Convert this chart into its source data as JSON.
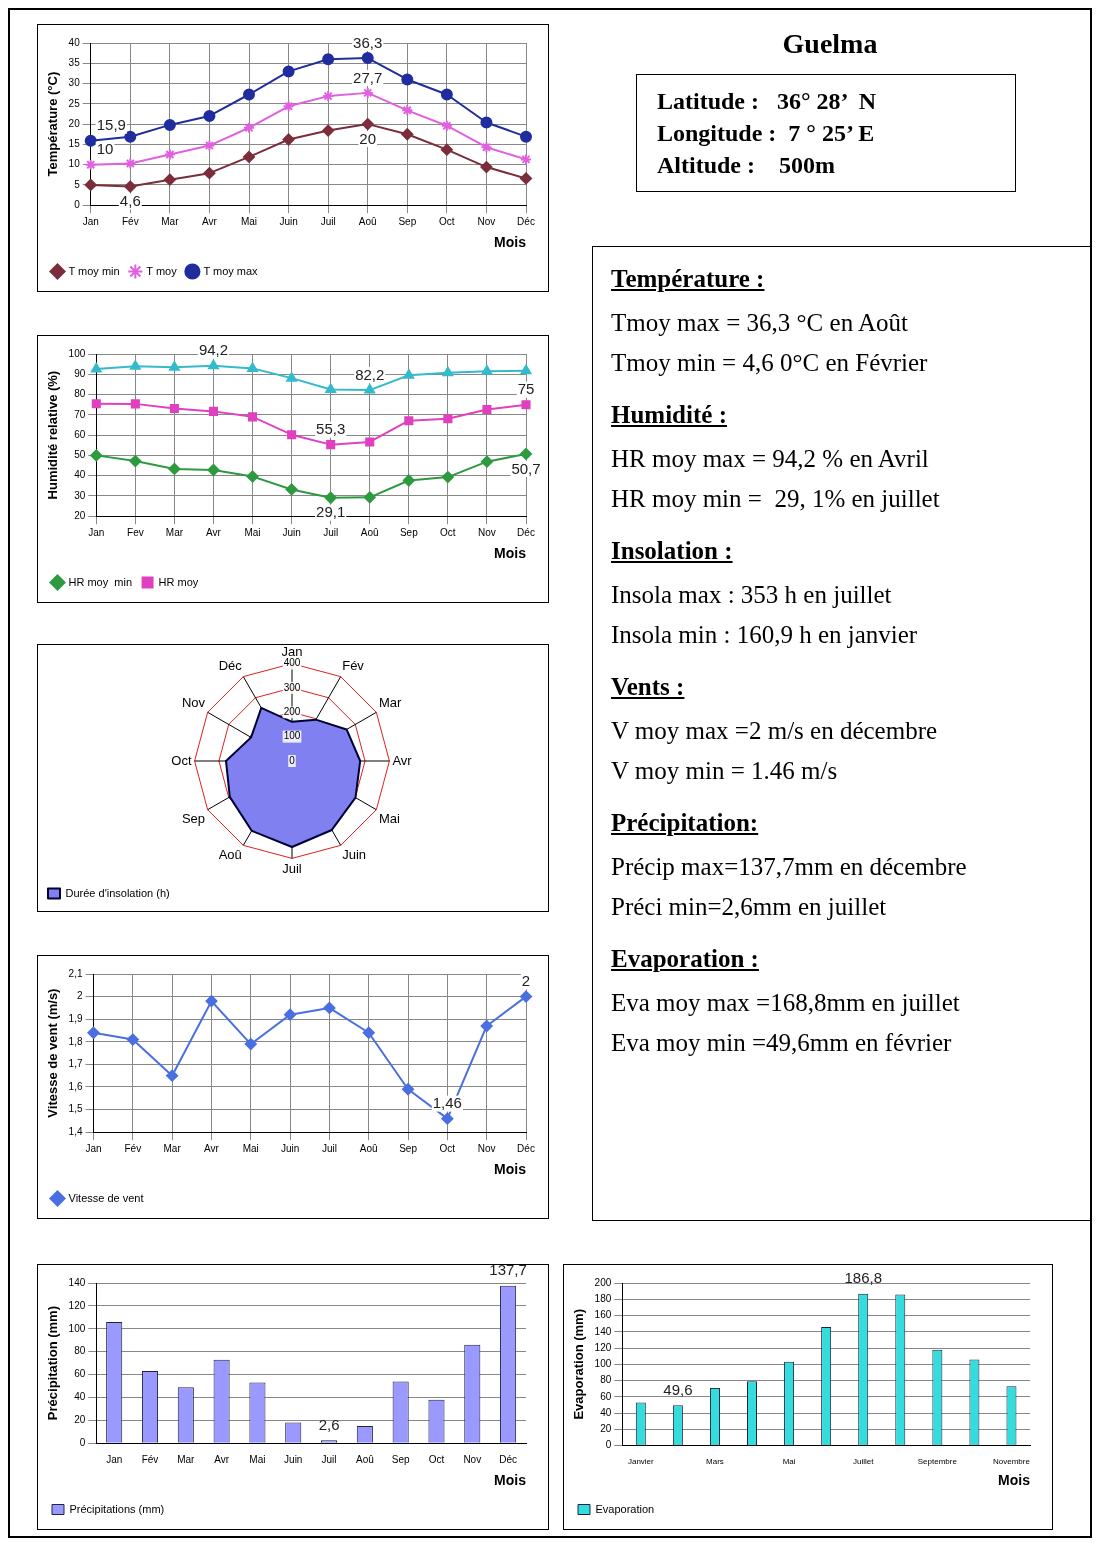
{
  "chart_data": [
    {
      "type": "line",
      "xlabel": "Mois",
      "ylabel": "Température (°C)",
      "categories": [
        "Jan",
        "Fév",
        "Mar",
        "Avr",
        "Mai",
        "Juin",
        "Juil",
        "Aoû",
        "Sep",
        "Oct",
        "Nov",
        "Déc"
      ],
      "ylim": [
        0,
        40
      ],
      "yticks": [
        0,
        5,
        10,
        15,
        20,
        25,
        30,
        35,
        40
      ],
      "grid": true,
      "legend": "bottom left",
      "series": [
        {
          "name": "T moy min",
          "color": "#7b2d3b",
          "marker": "diamond",
          "values": [
            5,
            4.6,
            6.3,
            7.9,
            11.9,
            16.2,
            18.4,
            20,
            17.5,
            13.7,
            9.4,
            6.6
          ],
          "value_labels": [
            null,
            "4,6",
            null,
            null,
            null,
            null,
            null,
            "20",
            null,
            null,
            null,
            null
          ]
        },
        {
          "name": "T moy",
          "color": "#e060e0",
          "marker": "cross",
          "values": [
            10,
            10.3,
            12.5,
            14.7,
            19.1,
            24.4,
            26.9,
            27.7,
            23.4,
            19.6,
            14.3,
            11.3
          ],
          "value_labels": [
            "10",
            null,
            null,
            null,
            null,
            null,
            null,
            "27,7",
            null,
            null,
            null,
            null
          ]
        },
        {
          "name": "T moy max",
          "color": "#1f2d9f",
          "marker": "circle",
          "values": [
            15.9,
            16.9,
            19.8,
            22,
            27.3,
            33,
            36,
            36.3,
            31,
            27.3,
            20.4,
            16.9
          ],
          "value_labels": [
            "15,9",
            null,
            null,
            null,
            null,
            null,
            null,
            "36,3",
            null,
            null,
            null,
            null
          ]
        }
      ]
    },
    {
      "type": "other",
      "title": "Guelma",
      "annotations": [
        "Latitude :   36° 28’  N",
        "Longitude :  7 ° 25’ E",
        "Altitude :    500m"
      ]
    },
    {
      "type": "line",
      "xlabel": "Mois",
      "ylabel": "Humidité relative (%)",
      "categories": [
        "Jan",
        "Fev",
        "Mar",
        "Avr",
        "Mai",
        "Juin",
        "Juil",
        "Aoû",
        "Sep",
        "Oct",
        "Nov",
        "Déc"
      ],
      "ylim": [
        20,
        100
      ],
      "yticks": [
        20,
        30,
        40,
        50,
        60,
        70,
        80,
        90,
        100
      ],
      "grid": true,
      "legend": "bottom left",
      "series": [
        {
          "name": "HR moy  min",
          "color": "#2e9a40",
          "marker": "diamond",
          "values": [
            50,
            47.2,
            43.3,
            42.8,
            39.6,
            33.2,
            29.1,
            29.3,
            37.6,
            39.3,
            46.9,
            50.7
          ],
          "value_labels": [
            null,
            null,
            null,
            null,
            null,
            null,
            "29,1",
            null,
            null,
            null,
            null,
            "50,7"
          ]
        },
        {
          "name": "HR moy",
          "color": "#e040c0",
          "marker": "square",
          "values": [
            75.5,
            75.4,
            73.1,
            71.7,
            69,
            60.2,
            55.3,
            56.6,
            67.1,
            68.1,
            72.6,
            75
          ],
          "value_labels": [
            null,
            null,
            null,
            null,
            null,
            null,
            "55,3",
            null,
            null,
            null,
            null,
            "75"
          ]
        },
        {
          "color": "#33bbcc",
          "marker": "triangle",
          "values": [
            92.6,
            93.9,
            93.5,
            94.2,
            92.9,
            88.1,
            82.5,
            82.2,
            89.5,
            90.8,
            91.5,
            91.7
          ],
          "value_labels": [
            null,
            null,
            null,
            "94,2",
            null,
            null,
            null,
            "82,2",
            null,
            null,
            null,
            null
          ]
        }
      ]
    },
    {
      "type": "other",
      "title": "Température :",
      "annotations": [
        "Tmoy max = 36,3 °C en Août",
        "Tmoy min = 4,6 0°C en Février"
      ]
    },
    {
      "type": "other",
      "title": "Humidité :",
      "annotations": [
        "HR moy max = 94,2 % en Avril",
        "HR moy min =  29, 1% en juillet"
      ]
    },
    {
      "type": "other",
      "title": "Insolation :",
      "annotations": [
        "Insola max : 353 h en juillet",
        "Insola min : 160,9 h en janvier"
      ]
    },
    {
      "type": "other",
      "title": "Vents :",
      "annotations": [
        "V moy max =2 m/s en décembre",
        "V moy min = 1.46 m/s"
      ]
    },
    {
      "type": "other",
      "title": "Précipitation:",
      "annotations": [
        "Précip max=137,7mm en décembre",
        "Préci min=2,6mm en juillet"
      ]
    },
    {
      "type": "other",
      "title": "Evaporation :",
      "annotations": [
        "Eva moy max =168,8mm en juillet",
        "Eva moy min =49,6mm en février"
      ]
    },
    {
      "type": "radar",
      "categories": [
        "Jan",
        "Fév",
        "Mar",
        "Avr",
        "Mai",
        "Juin",
        "Juil",
        "Aoû",
        "Sep",
        "Oct",
        "Nov",
        "Déc"
      ],
      "ylim": [
        0,
        400
      ],
      "yticks": [
        0,
        100,
        200,
        300,
        400
      ],
      "grid": true,
      "legend": "bottom left",
      "series": [
        {
          "name": "Durée d'insolation (h)",
          "color": "#8080f0",
          "values": [
            160.9,
            196,
            259,
            280,
            301,
            327,
            353,
            331,
            295,
            271,
            194,
            252
          ]
        }
      ]
    },
    {
      "type": "line",
      "xlabel": "Mois",
      "ylabel": "Vitesse de vent (m/s)",
      "categories": [
        "Jan",
        "Fév",
        "Mar",
        "Avr",
        "Mai",
        "Juin",
        "Juil",
        "Aoû",
        "Sep",
        "Oct",
        "Nov",
        "Déc"
      ],
      "ylim": [
        1.4,
        2.1
      ],
      "yticks": [
        {
          "value": 1.4,
          "label": "1,4"
        },
        {
          "value": 1.5,
          "label": "1,5"
        },
        {
          "value": 1.6,
          "label": "1,6"
        },
        {
          "value": 1.7,
          "label": "1,7"
        },
        {
          "value": 1.8,
          "label": "1,8"
        },
        {
          "value": 1.9,
          "label": "1,9"
        },
        2,
        {
          "value": 2.1,
          "label": "2,1"
        }
      ],
      "grid": true,
      "legend": "bottom left",
      "series": [
        {
          "name": "Vitesse de vent",
          "color": "#4a6fe0",
          "marker": "diamond",
          "values": [
            1.84,
            1.81,
            1.65,
            1.98,
            1.79,
            1.92,
            1.95,
            1.84,
            1.59,
            1.46,
            1.87,
            2
          ],
          "value_labels": [
            null,
            null,
            null,
            null,
            null,
            null,
            null,
            null,
            null,
            "1,46",
            null,
            "2"
          ]
        }
      ]
    },
    {
      "type": "bar",
      "xlabel": "Mois",
      "ylabel": "Précipitation (mm)",
      "categories": [
        "Jan",
        "Fév",
        "Mar",
        "Avr",
        "Mai",
        "Juin",
        "Juil",
        "Aoû",
        "Sep",
        "Oct",
        "Nov",
        "Déc"
      ],
      "ylim": [
        0,
        140
      ],
      "yticks": [
        0,
        20,
        40,
        60,
        80,
        100,
        120,
        140
      ],
      "grid": "y",
      "legend": "bottom left",
      "series": [
        {
          "name": "Précipitations (mm)",
          "color": "#9999ff",
          "values": [
            106,
            63,
            49,
            73,
            53,
            18,
            2.6,
            15,
            54,
            38,
            86,
            137.7
          ],
          "value_labels": [
            null,
            null,
            null,
            null,
            null,
            null,
            "2,6",
            null,
            null,
            null,
            null,
            "137,7"
          ]
        }
      ]
    },
    {
      "type": "bar",
      "xlabel": "Mois",
      "ylabel": "Evaporation (mm)",
      "categories": [
        "Janvier",
        null,
        "Mars",
        null,
        "Mai",
        null,
        "Juillet",
        null,
        "Septembre",
        null,
        "Novembre"
      ],
      "ylim": [
        0,
        200
      ],
      "yticks": [
        0,
        20,
        40,
        60,
        80,
        100,
        120,
        140,
        160,
        180,
        200
      ],
      "grid": "y",
      "legend": "bottom left",
      "series": [
        {
          "name": "Evaporation",
          "color": "#33dddd",
          "values": [
            53,
            49.6,
            71,
            79,
            103,
            146,
            186.8,
            186,
            118,
            106,
            73
          ],
          "value_labels": [
            null,
            "49,6",
            null,
            null,
            null,
            null,
            "186,8",
            null,
            null,
            null,
            null
          ]
        }
      ]
    }
  ]
}
